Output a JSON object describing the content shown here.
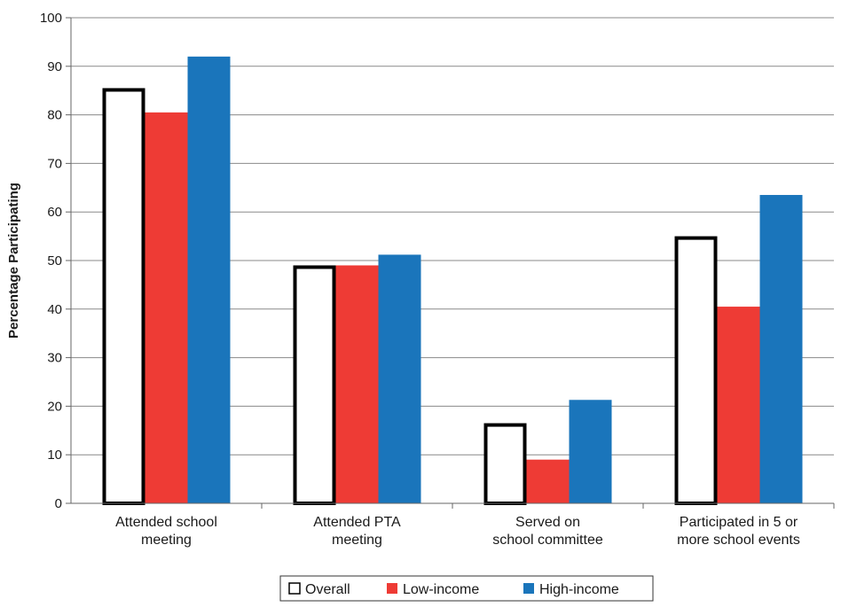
{
  "chart_data": {
    "type": "bar",
    "title": "",
    "xlabel": "",
    "ylabel": "Percentage Participating",
    "ylim": [
      0,
      100
    ],
    "yticks": [
      0,
      10,
      20,
      30,
      40,
      50,
      60,
      70,
      80,
      90,
      100
    ],
    "grid": true,
    "legend_position": "bottom",
    "categories": [
      [
        "Attended school",
        "meeting"
      ],
      [
        "Attended PTA",
        "meeting"
      ],
      [
        "Served on",
        "school committee"
      ],
      [
        "Participated in 5 or",
        "more school events"
      ]
    ],
    "series": [
      {
        "name": "Overall",
        "color": "#ffffff",
        "stroke": "#000000",
        "values": [
          85.5,
          49,
          16.5,
          55
        ]
      },
      {
        "name": "Low-income",
        "color": "#ee3b35",
        "stroke": "none",
        "values": [
          80.5,
          49,
          9,
          40.5
        ]
      },
      {
        "name": "High-income",
        "color": "#1a75bb",
        "stroke": "none",
        "values": [
          92,
          51.2,
          21.3,
          63.5
        ]
      }
    ]
  }
}
